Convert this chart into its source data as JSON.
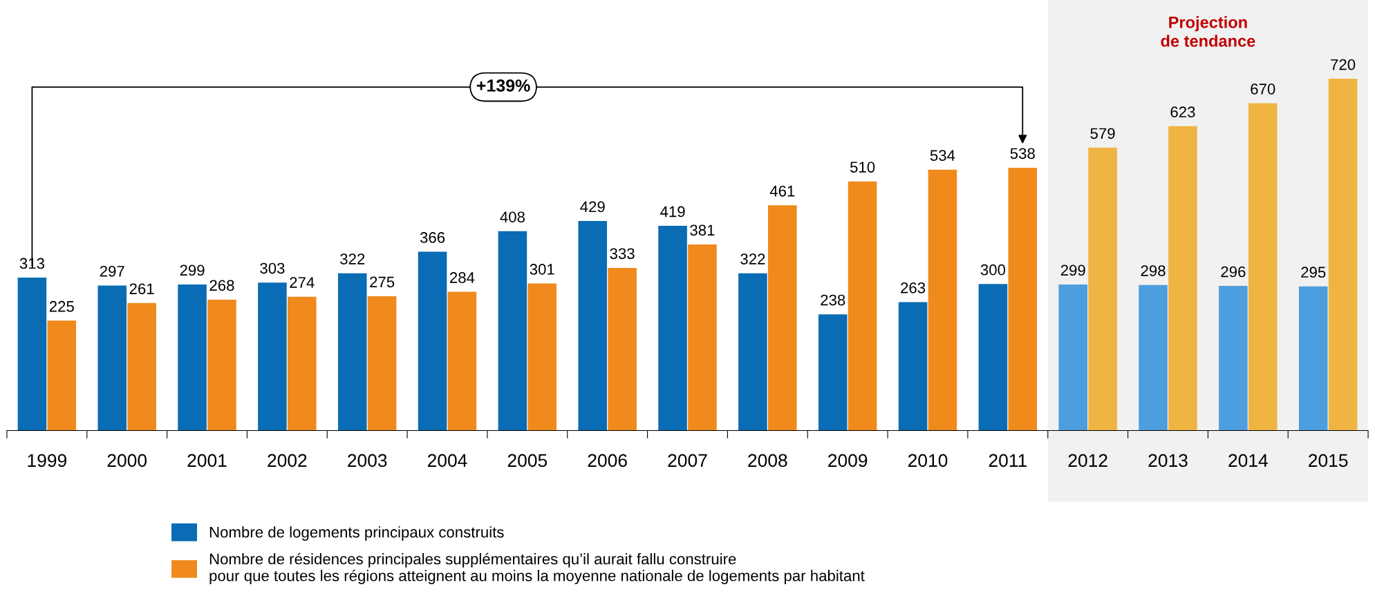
{
  "chart_data": {
    "type": "bar",
    "categories": [
      "1999",
      "2000",
      "2001",
      "2002",
      "2003",
      "2004",
      "2005",
      "2006",
      "2007",
      "2008",
      "2009",
      "2010",
      "2011",
      "2012",
      "2013",
      "2014",
      "2015"
    ],
    "series": [
      {
        "name": "Nombre de logements principaux construits",
        "color": "#0a6cb4",
        "colors": [
          "#0a6cb4",
          "#0a6cb4",
          "#0a6cb4",
          "#0a6cb4",
          "#0a6cb4",
          "#0a6cb4",
          "#0a6cb4",
          "#0a6cb4",
          "#0a6cb4",
          "#0a6cb4",
          "#0a6cb4",
          "#0a6cb4",
          "#0a6cb4",
          "#4d9ede",
          "#4d9ede",
          "#4d9ede",
          "#4d9ede"
        ],
        "values": [
          313,
          297,
          299,
          303,
          322,
          366,
          408,
          429,
          419,
          322,
          238,
          263,
          300,
          299,
          298,
          296,
          295
        ]
      },
      {
        "name": "Nombre de résidences principales supplémentaires qu’il aurait fallu construire\npour que toutes les régions atteignent au moins la moyenne nationale de logements par habitant",
        "color": "#f08a1c",
        "colors": [
          "#f08a1c",
          "#f08a1c",
          "#f08a1c",
          "#f08a1c",
          "#f08a1c",
          "#f08a1c",
          "#f08a1c",
          "#f08a1c",
          "#f08a1c",
          "#f08a1c",
          "#f08a1c",
          "#f08a1c",
          "#f08a1c",
          "#efb442",
          "#efb442",
          "#efb442",
          "#efb442"
        ],
        "values": [
          225,
          261,
          268,
          274,
          275,
          284,
          301,
          333,
          381,
          461,
          510,
          534,
          538,
          579,
          623,
          670,
          720
        ]
      }
    ],
    "data_labels": true,
    "bands": [
      {
        "axis": "x",
        "from": "2012",
        "to": "2015",
        "label": "Projection\nde tendance",
        "color": "#f1f1f1"
      }
    ],
    "annotations": [
      "+139%"
    ],
    "legend": "bottom left",
    "grid": false
  }
}
